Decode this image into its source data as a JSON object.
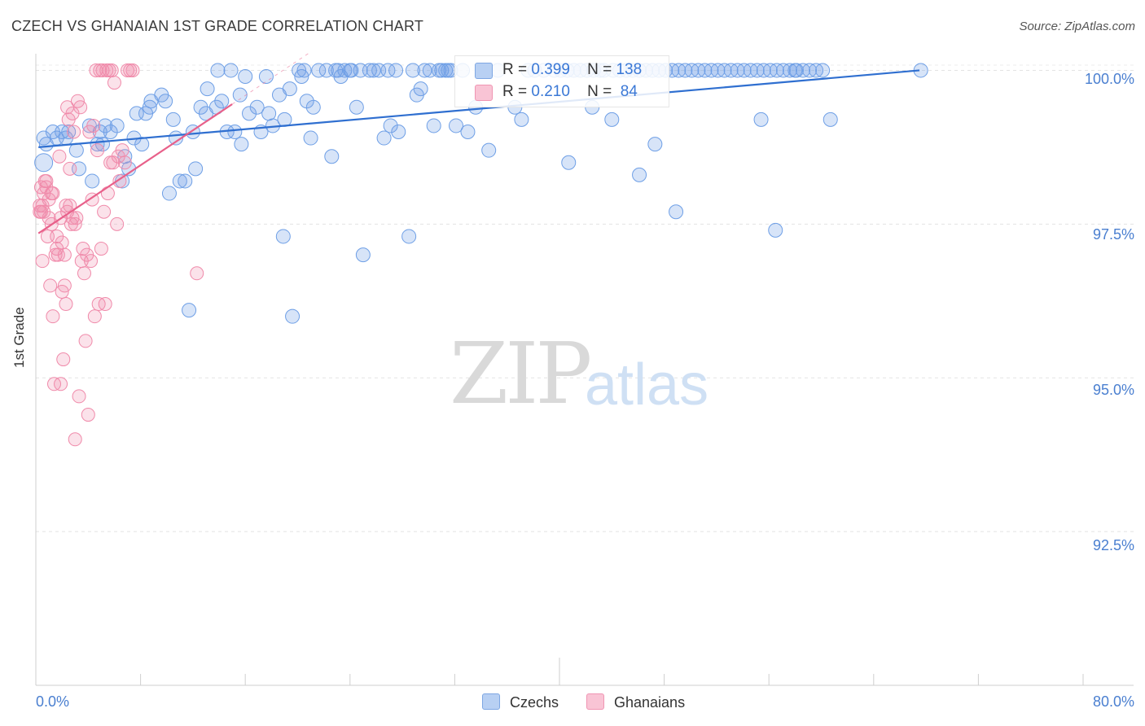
{
  "title": "CZECH VS GHANAIAN 1ST GRADE CORRELATION CHART",
  "source": "Source: ZipAtlas.com",
  "watermark": {
    "zip": "ZIP",
    "atlas": "atlas"
  },
  "colors": {
    "czech": "#6e9fe6",
    "czech_line": "#2f6fd0",
    "ghana": "#f08aaa",
    "ghana_line": "#e8608a",
    "axis_text": "#4a7fd0"
  },
  "legend": {
    "czech": {
      "r_label": "R =",
      "r_value": "0.399",
      "n_label": "N =",
      "n_value": "138"
    },
    "ghana": {
      "r_label": "R =",
      "r_value": "0.210",
      "n_label": "N =",
      "n_value": "84"
    }
  },
  "bottom_legend": {
    "czech": "Czechs",
    "ghana": "Ghanaians"
  },
  "chart_data": {
    "type": "scatter",
    "title": "CZECH VS GHANAIAN 1ST GRADE CORRELATION CHART",
    "xlabel": "",
    "ylabel": "1st Grade",
    "xlim": [
      0,
      80
    ],
    "ylim": [
      90.0,
      100.35
    ],
    "x_tick_labels": [
      "0.0%",
      "80.0%"
    ],
    "y_ticks": [
      {
        "value": 100.0,
        "label": "100.0%"
      },
      {
        "value": 97.5,
        "label": "97.5%"
      },
      {
        "value": 95.0,
        "label": "95.0%"
      },
      {
        "value": 92.5,
        "label": "92.5%"
      }
    ],
    "series": [
      {
        "name": "Czechs",
        "r": 0.399,
        "n": 138,
        "trend": [
          [
            0.2,
            98.75
          ],
          [
            67.5,
            100.0
          ]
        ],
        "points": [
          [
            0.6,
            98.5
          ],
          [
            0.6,
            98.9
          ],
          [
            0.8,
            98.8
          ],
          [
            1.3,
            99.0
          ],
          [
            1.6,
            98.9
          ],
          [
            2.0,
            99.0
          ],
          [
            2.3,
            98.9
          ],
          [
            2.5,
            99.0
          ],
          [
            3.1,
            98.7
          ],
          [
            3.3,
            98.4
          ],
          [
            4.1,
            99.1
          ],
          [
            4.3,
            98.2
          ],
          [
            4.7,
            98.8
          ],
          [
            4.9,
            99.0
          ],
          [
            5.1,
            98.8
          ],
          [
            5.3,
            99.1
          ],
          [
            5.7,
            99.0
          ],
          [
            6.2,
            99.1
          ],
          [
            6.6,
            98.2
          ],
          [
            6.8,
            98.6
          ],
          [
            7.1,
            98.4
          ],
          [
            7.5,
            98.9
          ],
          [
            7.7,
            99.3
          ],
          [
            8.1,
            98.8
          ],
          [
            8.4,
            99.3
          ],
          [
            8.7,
            99.4
          ],
          [
            8.8,
            99.5
          ],
          [
            9.6,
            99.6
          ],
          [
            9.9,
            99.5
          ],
          [
            10.2,
            98.0
          ],
          [
            10.5,
            99.2
          ],
          [
            10.7,
            98.9
          ],
          [
            11.0,
            98.2
          ],
          [
            11.4,
            98.2
          ],
          [
            11.7,
            96.1
          ],
          [
            12.0,
            99.0
          ],
          [
            12.2,
            98.4
          ],
          [
            12.6,
            99.4
          ],
          [
            13.0,
            99.3
          ],
          [
            13.1,
            99.7
          ],
          [
            13.8,
            99.4
          ],
          [
            13.9,
            100.0
          ],
          [
            14.2,
            99.5
          ],
          [
            14.6,
            99.0
          ],
          [
            14.9,
            100.0
          ],
          [
            15.2,
            99.0
          ],
          [
            15.6,
            99.6
          ],
          [
            15.7,
            98.8
          ],
          [
            16.0,
            99.9
          ],
          [
            16.3,
            99.3
          ],
          [
            16.9,
            99.4
          ],
          [
            17.2,
            99.0
          ],
          [
            17.6,
            99.9
          ],
          [
            17.8,
            99.3
          ],
          [
            18.1,
            99.1
          ],
          [
            18.6,
            99.6
          ],
          [
            18.9,
            97.3
          ],
          [
            19.0,
            99.2
          ],
          [
            19.4,
            99.7
          ],
          [
            19.6,
            96.0
          ],
          [
            20.1,
            100.0
          ],
          [
            20.3,
            99.9
          ],
          [
            20.5,
            100.0
          ],
          [
            20.7,
            99.5
          ],
          [
            21.0,
            98.9
          ],
          [
            21.2,
            99.4
          ],
          [
            21.6,
            100.0
          ],
          [
            22.2,
            100.0
          ],
          [
            22.6,
            98.6
          ],
          [
            22.9,
            100.0
          ],
          [
            23.1,
            100.0
          ],
          [
            23.3,
            99.9
          ],
          [
            23.6,
            100.0
          ],
          [
            24.0,
            100.0
          ],
          [
            24.1,
            100.0
          ],
          [
            24.5,
            99.4
          ],
          [
            24.8,
            100.0
          ],
          [
            25.0,
            97.0
          ],
          [
            25.5,
            100.0
          ],
          [
            25.8,
            100.0
          ],
          [
            26.2,
            100.0
          ],
          [
            26.6,
            98.9
          ],
          [
            26.9,
            100.0
          ],
          [
            27.1,
            99.1
          ],
          [
            27.5,
            100.0
          ],
          [
            27.7,
            99.0
          ],
          [
            28.5,
            97.3
          ],
          [
            28.8,
            100.0
          ],
          [
            29.1,
            99.6
          ],
          [
            29.4,
            99.7
          ],
          [
            29.7,
            100.0
          ],
          [
            30.1,
            100.0
          ],
          [
            30.4,
            99.1
          ],
          [
            30.8,
            100.0
          ],
          [
            31.0,
            100.0
          ],
          [
            31.3,
            100.0
          ],
          [
            31.5,
            100.0
          ],
          [
            31.7,
            100.0
          ],
          [
            32.1,
            99.1
          ],
          [
            32.6,
            100.0
          ],
          [
            33.0,
            99.0
          ],
          [
            33.6,
            99.4
          ],
          [
            34.3,
            100.0
          ],
          [
            34.6,
            98.7
          ],
          [
            35.3,
            100.0
          ],
          [
            36.6,
            99.4
          ],
          [
            37.1,
            99.2
          ],
          [
            37.6,
            100.0
          ],
          [
            38.1,
            100.0
          ],
          [
            38.8,
            100.0
          ],
          [
            39.6,
            100.0
          ],
          [
            40.1,
            100.0
          ],
          [
            40.6,
            100.0
          ],
          [
            41.1,
            100.0
          ],
          [
            41.6,
            100.0
          ],
          [
            42.1,
            100.0
          ],
          [
            42.6,
            100.0
          ],
          [
            43.1,
            100.0
          ],
          [
            43.4,
            100.0
          ],
          [
            44.1,
            100.0
          ],
          [
            44.6,
            100.0
          ],
          [
            45.1,
            100.0
          ],
          [
            45.6,
            100.0
          ],
          [
            46.1,
            100.0
          ],
          [
            46.6,
            100.0
          ],
          [
            47.1,
            100.0
          ],
          [
            47.6,
            100.0
          ],
          [
            48.1,
            100.0
          ],
          [
            48.6,
            100.0
          ],
          [
            49.1,
            100.0
          ],
          [
            49.6,
            100.0
          ],
          [
            50.1,
            100.0
          ],
          [
            50.6,
            100.0
          ],
          [
            51.1,
            100.0
          ],
          [
            51.6,
            100.0
          ],
          [
            52.1,
            100.0
          ],
          [
            52.6,
            100.0
          ],
          [
            53.1,
            100.0
          ],
          [
            53.6,
            100.0
          ],
          [
            54.1,
            100.0
          ],
          [
            54.6,
            100.0
          ],
          [
            55.1,
            100.0
          ],
          [
            55.6,
            100.0
          ],
          [
            56.1,
            100.0
          ],
          [
            56.6,
            100.0
          ],
          [
            57.1,
            100.0
          ],
          [
            57.6,
            100.0
          ],
          [
            58.1,
            100.0
          ],
          [
            58.6,
            100.0
          ],
          [
            59.1,
            100.0
          ],
          [
            59.6,
            100.0
          ],
          [
            60.1,
            100.0
          ],
          [
            40.7,
            98.5
          ],
          [
            42.5,
            99.4
          ],
          [
            44.0,
            99.2
          ],
          [
            46.1,
            98.3
          ],
          [
            47.3,
            98.8
          ],
          [
            48.9,
            97.7
          ],
          [
            55.4,
            99.2
          ],
          [
            56.5,
            97.4
          ],
          [
            58.0,
            100.0
          ],
          [
            60.7,
            99.2
          ],
          [
            67.6,
            100.0
          ]
        ]
      },
      {
        "name": "Ghanaians",
        "r": 0.21,
        "n": 84,
        "trend": [
          [
            0.2,
            97.35
          ],
          [
            15.0,
            99.45
          ]
        ],
        "points": [
          [
            0.3,
            97.8
          ],
          [
            0.3,
            97.7
          ],
          [
            0.4,
            98.1
          ],
          [
            0.5,
            96.9
          ],
          [
            0.5,
            97.8
          ],
          [
            0.6,
            97.7
          ],
          [
            0.7,
            98.2
          ],
          [
            0.8,
            98.1
          ],
          [
            0.9,
            97.3
          ],
          [
            1.0,
            97.9
          ],
          [
            1.1,
            96.5
          ],
          [
            1.2,
            97.5
          ],
          [
            1.3,
            98.0
          ],
          [
            1.3,
            96.0
          ],
          [
            1.4,
            94.9
          ],
          [
            1.5,
            97.0
          ],
          [
            1.6,
            97.1
          ],
          [
            1.7,
            97.0
          ],
          [
            1.8,
            98.6
          ],
          [
            1.9,
            94.9
          ],
          [
            2.0,
            96.4
          ],
          [
            2.1,
            95.3
          ],
          [
            2.2,
            96.5
          ],
          [
            2.3,
            97.8
          ],
          [
            2.3,
            96.2
          ],
          [
            2.4,
            99.4
          ],
          [
            2.5,
            99.2
          ],
          [
            2.6,
            98.4
          ],
          [
            2.7,
            97.5
          ],
          [
            2.8,
            99.3
          ],
          [
            2.9,
            99.0
          ],
          [
            3.0,
            94.0
          ],
          [
            3.1,
            97.6
          ],
          [
            3.2,
            99.5
          ],
          [
            3.3,
            94.7
          ],
          [
            3.4,
            99.4
          ],
          [
            3.5,
            96.9
          ],
          [
            3.6,
            97.1
          ],
          [
            3.7,
            96.7
          ],
          [
            3.8,
            95.6
          ],
          [
            3.9,
            97.0
          ],
          [
            4.0,
            94.4
          ],
          [
            4.1,
            99.0
          ],
          [
            4.2,
            96.9
          ],
          [
            4.3,
            97.9
          ],
          [
            4.4,
            99.1
          ],
          [
            4.5,
            96.0
          ],
          [
            4.6,
            100.0
          ],
          [
            4.7,
            98.7
          ],
          [
            4.8,
            96.2
          ],
          [
            4.9,
            100.0
          ],
          [
            5.0,
            97.1
          ],
          [
            5.1,
            100.0
          ],
          [
            5.2,
            97.7
          ],
          [
            5.3,
            96.2
          ],
          [
            5.4,
            100.0
          ],
          [
            5.5,
            98.0
          ],
          [
            5.6,
            100.0
          ],
          [
            5.7,
            98.5
          ],
          [
            5.8,
            100.0
          ],
          [
            5.9,
            98.5
          ],
          [
            6.0,
            99.8
          ],
          [
            6.2,
            97.5
          ],
          [
            6.3,
            98.6
          ],
          [
            6.4,
            98.2
          ],
          [
            6.6,
            98.7
          ],
          [
            6.8,
            98.5
          ],
          [
            7.0,
            100.0
          ],
          [
            7.2,
            100.0
          ],
          [
            7.4,
            100.0
          ],
          [
            12.3,
            96.7
          ],
          [
            0.8,
            98.2
          ],
          [
            1.0,
            97.6
          ],
          [
            1.2,
            98.0
          ],
          [
            1.6,
            97.3
          ],
          [
            2.0,
            97.2
          ],
          [
            2.4,
            97.7
          ],
          [
            2.6,
            97.8
          ],
          [
            2.8,
            97.6
          ],
          [
            3.0,
            97.5
          ],
          [
            0.4,
            97.7
          ],
          [
            0.6,
            98.0
          ],
          [
            2.2,
            97.0
          ],
          [
            1.9,
            97.6
          ]
        ]
      }
    ]
  }
}
